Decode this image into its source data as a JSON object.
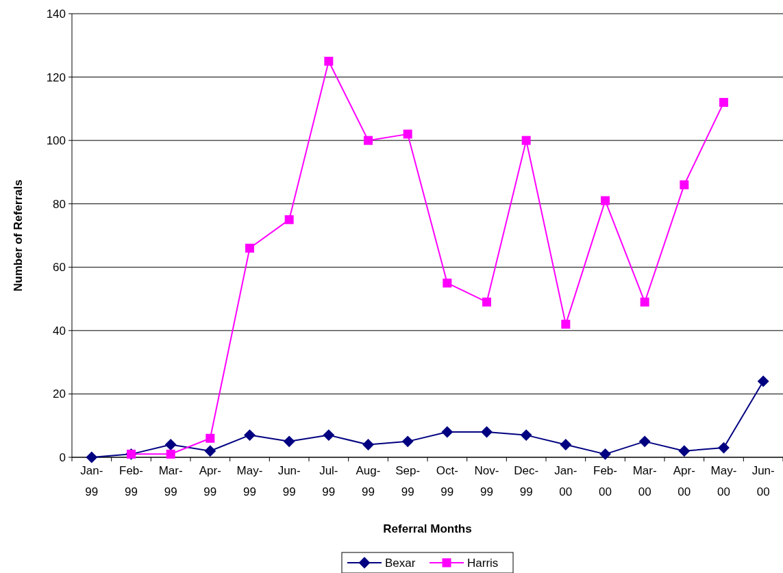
{
  "chart_data": {
    "type": "line",
    "xlabel": "Referral Months",
    "ylabel": "Number of Referrals",
    "categories": [
      "Jan-99",
      "Feb-99",
      "Mar-99",
      "Apr-99",
      "May-99",
      "Jun-99",
      "Jul-99",
      "Aug-99",
      "Sep-99",
      "Oct-99",
      "Nov-99",
      "Dec-99",
      "Jan-00",
      "Feb-00",
      "Mar-00",
      "Apr-00",
      "May-00",
      "Jun-00"
    ],
    "series": [
      {
        "name": "Bexar",
        "color": "#000080",
        "marker": "diamond",
        "values": [
          0,
          1,
          4,
          2,
          7,
          5,
          7,
          4,
          5,
          8,
          8,
          7,
          4,
          1,
          5,
          2,
          3,
          24
        ]
      },
      {
        "name": "Harris",
        "color": "#ff00ff",
        "marker": "square",
        "values": [
          null,
          1,
          1,
          6,
          66,
          75,
          125,
          100,
          102,
          55,
          49,
          100,
          42,
          81,
          49,
          86,
          112,
          null
        ]
      }
    ],
    "ylim": [
      0,
      140
    ],
    "yticks": [
      0,
      20,
      40,
      60,
      80,
      100,
      120,
      140
    ],
    "grid": "y",
    "legend": "bottom",
    "line_style": "solid"
  }
}
